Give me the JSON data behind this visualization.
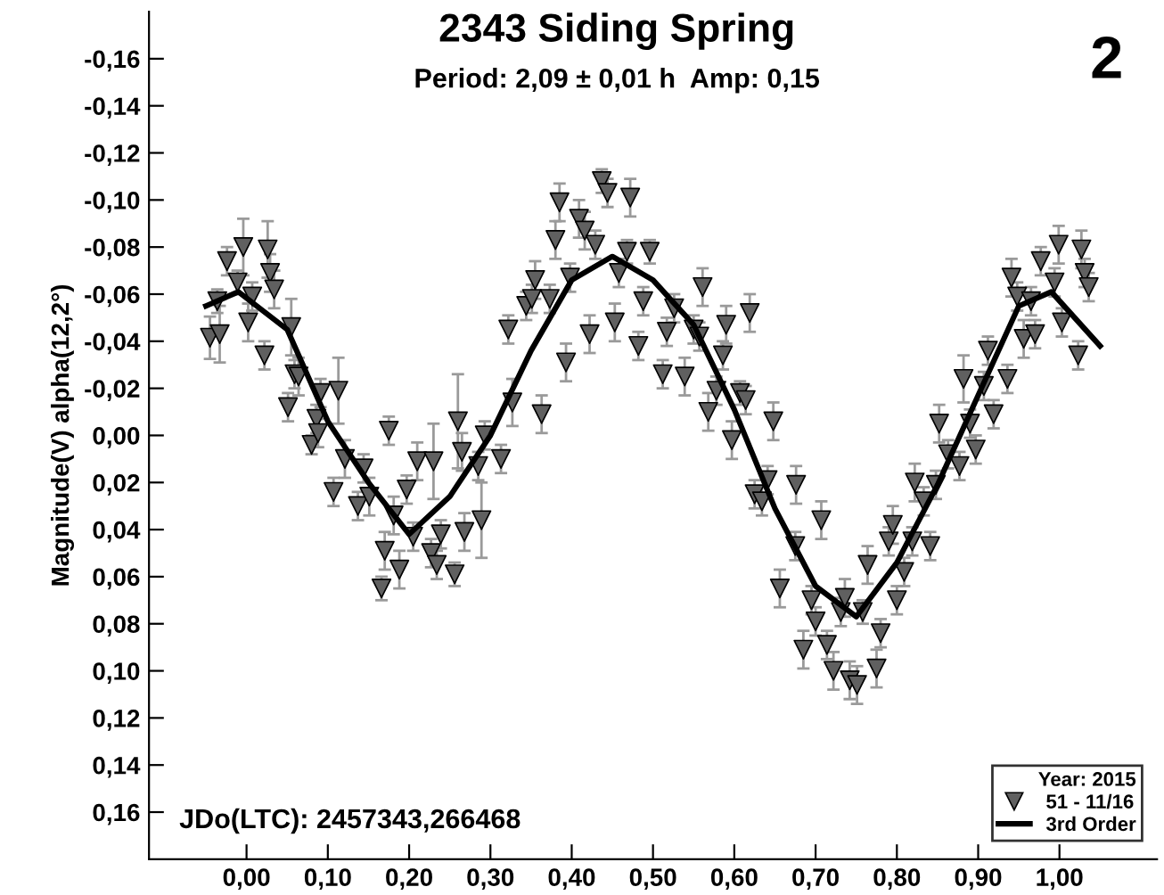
{
  "chart_data": {
    "type": "scatter",
    "title": "2343 Siding Spring",
    "subtitle": "Period: 2,09 ± 0,01 h  Amp: 0,15",
    "ylabel": "Magnitude(V) alpha(12,2°)",
    "legend_title": "Year: 2015",
    "annotations": [
      "2",
      "JDo(LTC): 2457343,266468"
    ],
    "xlim": [
      -0.12,
      1.12
    ],
    "ylim": [
      0.18,
      -0.18
    ],
    "xticks": [
      {
        "value": 0,
        "label": "0,00"
      },
      {
        "value": 0.1,
        "label": "0,10"
      },
      {
        "value": 0.2,
        "label": "0,20"
      },
      {
        "value": 0.3,
        "label": "0,30"
      },
      {
        "value": 0.4,
        "label": "0,40"
      },
      {
        "value": 0.5,
        "label": "0,50"
      },
      {
        "value": 0.6,
        "label": "0,60"
      },
      {
        "value": 0.7,
        "label": "0,70"
      },
      {
        "value": 0.8,
        "label": "0,80"
      },
      {
        "value": 0.9,
        "label": "0,90"
      },
      {
        "value": 1.0,
        "label": "1,00"
      }
    ],
    "yticks": [
      {
        "value": -0.16,
        "label": "-0,16"
      },
      {
        "value": -0.14,
        "label": "-0,14"
      },
      {
        "value": -0.12,
        "label": "-0,12"
      },
      {
        "value": -0.1,
        "label": "-0,10"
      },
      {
        "value": -0.08,
        "label": "-0,08"
      },
      {
        "value": -0.06,
        "label": "-0,06"
      },
      {
        "value": -0.04,
        "label": "-0,04"
      },
      {
        "value": -0.02,
        "label": "-0,02"
      },
      {
        "value": 0,
        "label": "0,00"
      },
      {
        "value": 0.02,
        "label": "0,02"
      },
      {
        "value": 0.04,
        "label": "0,04"
      },
      {
        "value": 0.06,
        "label": "0,06"
      },
      {
        "value": 0.08,
        "label": "0,08"
      },
      {
        "value": 0.1,
        "label": "0,10"
      },
      {
        "value": 0.12,
        "label": "0,12"
      },
      {
        "value": 0.14,
        "label": "0,14"
      },
      {
        "value": 0.16,
        "label": "0,16"
      }
    ],
    "grid": false,
    "legend": "bottom right",
    "series": [
      {
        "name": "51 - 11/16",
        "marker": "triangle",
        "color": "#606060",
        "x": [
          -0.045,
          -0.036,
          -0.033,
          -0.024,
          -0.011,
          -0.004,
          0.002,
          0.007,
          0.022,
          0.026,
          0.029,
          0.034,
          0.051,
          0.055,
          0.059,
          0.064,
          0.08,
          0.086,
          0.088,
          0.091,
          0.107,
          0.113,
          0.121,
          0.137,
          0.144,
          0.151,
          0.166,
          0.17,
          0.175,
          0.181,
          0.188,
          0.197,
          0.205,
          0.21,
          0.227,
          0.23,
          0.234,
          0.239,
          0.256,
          0.26,
          0.265,
          0.268,
          0.285,
          0.289,
          0.293,
          0.313,
          0.322,
          0.327,
          0.344,
          0.351,
          0.355,
          0.363,
          0.373,
          0.38,
          0.385,
          0.393,
          0.398,
          0.409,
          0.416,
          0.422,
          0.429,
          0.437,
          0.444,
          0.453,
          0.458,
          0.468,
          0.472,
          0.482,
          0.488,
          0.496,
          0.512,
          0.517,
          0.526,
          0.539,
          0.55,
          0.557,
          0.561,
          0.568,
          0.578,
          0.586,
          0.59,
          0.597,
          0.607,
          0.614,
          0.619,
          0.625,
          0.634,
          0.641,
          0.648,
          0.656,
          0.675,
          0.676,
          0.685,
          0.695,
          0.7,
          0.707,
          0.714,
          0.722,
          0.731,
          0.736,
          0.742,
          0.751,
          0.758,
          0.764,
          0.775,
          0.78,
          0.79,
          0.795,
          0.8,
          0.809,
          0.819,
          0.822,
          0.833,
          0.841,
          0.848,
          0.852,
          0.863,
          0.877,
          0.882,
          0.89,
          0.897,
          0.907,
          0.912,
          0.919,
          0.936,
          0.941,
          0.948,
          0.956,
          0.965,
          0.97,
          0.977,
          0.994,
          0.999,
          1.003,
          1.023,
          1.027,
          1.031,
          1.036
        ],
        "values": [
          -0.0415,
          -0.057,
          -0.043,
          -0.074,
          -0.065,
          -0.08,
          -0.048,
          -0.059,
          -0.034,
          -0.079,
          -0.069,
          -0.062,
          -0.012,
          -0.046,
          -0.026,
          -0.025,
          0.004,
          -0.007,
          -0.001,
          -0.018,
          0.024,
          -0.019,
          0.01,
          0.03,
          0.014,
          0.026,
          0.065,
          0.049,
          -0.002,
          0.034,
          0.057,
          0.023,
          0.043,
          0.011,
          0.05,
          0.011,
          0.055,
          0.042,
          0.059,
          -0.006,
          0.007,
          0.041,
          0.013,
          0.036,
          0.0,
          0.01,
          -0.045,
          -0.014,
          -0.055,
          -0.058,
          -0.066,
          -0.009,
          -0.058,
          -0.083,
          -0.099,
          -0.031,
          -0.067,
          -0.092,
          -0.087,
          -0.043,
          -0.081,
          -0.108,
          -0.103,
          -0.048,
          -0.069,
          -0.078,
          -0.101,
          -0.038,
          -0.057,
          -0.078,
          -0.026,
          -0.044,
          -0.054,
          -0.025,
          -0.045,
          -0.042,
          -0.063,
          -0.01,
          -0.019,
          -0.034,
          -0.047,
          0.002,
          -0.018,
          -0.015,
          -0.052,
          0.025,
          0.028,
          0.019,
          -0.006,
          0.065,
          0.047,
          0.021,
          0.091,
          0.07,
          0.079,
          0.036,
          0.089,
          0.1,
          0.075,
          0.069,
          0.104,
          0.106,
          0.075,
          0.055,
          0.099,
          0.084,
          0.045,
          0.038,
          0.07,
          0.058,
          0.045,
          0.02,
          0.028,
          0.047,
          0.021,
          -0.005,
          0.008,
          0.013,
          -0.024,
          -0.005,
          0.006,
          -0.021,
          -0.036,
          -0.009,
          -0.024,
          -0.067,
          -0.059,
          -0.041,
          -0.057,
          -0.043,
          -0.074,
          -0.065,
          -0.081,
          -0.048,
          -0.034,
          -0.079,
          -0.069,
          -0.063
        ],
        "errors": [
          0.009,
          0.005,
          0.012,
          0.006,
          0.005,
          0.012,
          0.008,
          0.006,
          0.006,
          0.012,
          0.008,
          0.008,
          0.006,
          0.012,
          0.006,
          0.008,
          0.004,
          0.006,
          0.006,
          0.006,
          0.006,
          0.014,
          0.008,
          0.006,
          0.006,
          0.008,
          0.005,
          0.008,
          0.006,
          0.008,
          0.008,
          0.006,
          0.006,
          0.008,
          0.006,
          0.016,
          0.006,
          0.006,
          0.005,
          0.02,
          0.008,
          0.008,
          0.006,
          0.016,
          0.006,
          0.006,
          0.006,
          0.01,
          0.006,
          0.006,
          0.008,
          0.008,
          0.006,
          0.008,
          0.008,
          0.008,
          0.006,
          0.008,
          0.008,
          0.008,
          0.006,
          0.005,
          0.006,
          0.008,
          0.006,
          0.005,
          0.008,
          0.006,
          0.006,
          0.005,
          0.006,
          0.006,
          0.006,
          0.008,
          0.006,
          0.006,
          0.008,
          0.008,
          0.006,
          0.006,
          0.008,
          0.008,
          0.005,
          0.006,
          0.008,
          0.006,
          0.006,
          0.006,
          0.008,
          0.008,
          0.006,
          0.008,
          0.008,
          0.006,
          0.006,
          0.008,
          0.006,
          0.008,
          0.006,
          0.008,
          0.008,
          0.008,
          0.005,
          0.008,
          0.008,
          0.006,
          0.006,
          0.008,
          0.006,
          0.006,
          0.006,
          0.008,
          0.006,
          0.006,
          0.006,
          0.008,
          0.006,
          0.006,
          0.01,
          0.006,
          0.006,
          0.006,
          0.006,
          0.006,
          0.006,
          0.008,
          0.006,
          0.008,
          0.006,
          0.006,
          0.006,
          0.006,
          0.008,
          0.006,
          0.006,
          0.008,
          0.006,
          0.006
        ]
      },
      {
        "name": "3rd Order",
        "type": "line",
        "marker": "none",
        "line_style": "solid",
        "color": "#000000",
        "x": [
          -0.05,
          -0.01,
          0.05,
          0.1,
          0.15,
          0.2,
          0.25,
          0.3,
          0.35,
          0.4,
          0.45,
          0.5,
          0.55,
          0.6,
          0.65,
          0.7,
          0.75,
          0.8,
          0.85,
          0.9,
          0.95,
          0.99,
          1.05
        ],
        "values": [
          -0.055,
          -0.061,
          -0.045,
          -0.006,
          0.02,
          0.042,
          0.026,
          0.0,
          -0.036,
          -0.066,
          -0.076,
          -0.066,
          -0.047,
          -0.011,
          0.031,
          0.064,
          0.077,
          0.054,
          0.021,
          -0.017,
          -0.055,
          -0.061,
          -0.038
        ]
      }
    ]
  }
}
